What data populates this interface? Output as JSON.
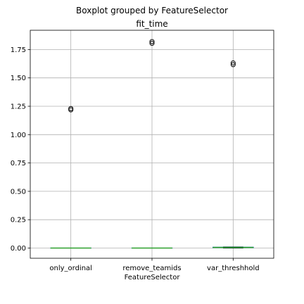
{
  "chart_data": {
    "type": "boxplot",
    "suptitle": "Boxplot grouped by FeatureSelector",
    "title": "fit_time",
    "xlabel": "FeatureSelector",
    "ylabel": "",
    "categories": [
      "only_ordinal",
      "remove_teamids",
      "var_threshhold"
    ],
    "boxes": [
      {
        "q1": 0.0,
        "median": 0.0,
        "q3": 0.0,
        "whislo": 0.0,
        "whishi": 0.0,
        "fliers": [
          1.218,
          1.23
        ]
      },
      {
        "q1": 0.0,
        "median": 0.0,
        "q3": 0.0,
        "whislo": 0.0,
        "whishi": 0.0,
        "fliers": [
          1.805,
          1.82
        ]
      },
      {
        "q1": 0.003,
        "median": 0.005,
        "q3": 0.008,
        "whislo": 0.0,
        "whishi": 0.01,
        "fliers": [
          1.617,
          1.632
        ]
      }
    ],
    "yticks": [
      "0.00",
      "0.25",
      "0.50",
      "0.75",
      "1.00",
      "1.25",
      "1.50",
      "1.75"
    ],
    "ylim": [
      -0.09,
      1.92
    ],
    "grid": true,
    "colors": {
      "box": "#1f77b4",
      "median": "#2ca02c",
      "whisker": "#000000",
      "grid": "#b0b0b0",
      "flier": "#000000"
    }
  }
}
